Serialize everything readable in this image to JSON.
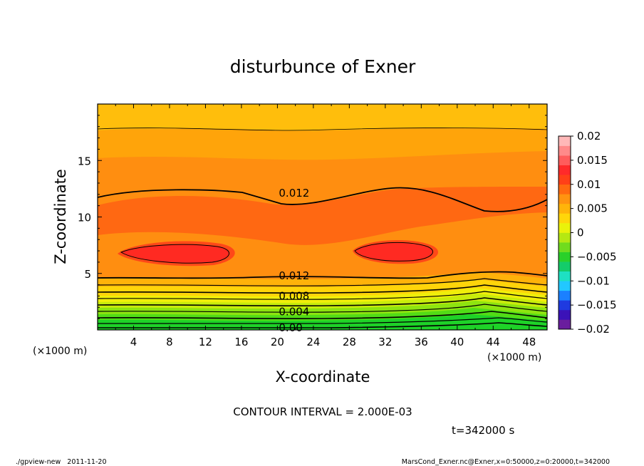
{
  "chart_data": {
    "type": "contour",
    "title": "disturbunce of Exner",
    "xlabel": "X-coordinate",
    "ylabel": "Z-coordinate",
    "x_unit": "(×1000 m)",
    "y_unit": "(×1000 m)",
    "xlim": [
      0,
      50
    ],
    "ylim": [
      0,
      20
    ],
    "x_ticks": [
      "4",
      "8",
      "12",
      "16",
      "20",
      "24",
      "28",
      "32",
      "36",
      "40",
      "44",
      "48"
    ],
    "y_ticks": [
      "5",
      "10",
      "15"
    ],
    "contour_interval_text": "CONTOUR INTERVAL = 2.000E-03",
    "time_text": "t=342000 s",
    "contour_labels": [
      {
        "text": "0.012",
        "x": 20,
        "z": 12.1
      },
      {
        "text": "0.012",
        "x": 20,
        "z": 4.8
      },
      {
        "text": "0.008",
        "x": 20,
        "z": 3.0
      },
      {
        "text": "0.004",
        "x": 20,
        "z": 1.6
      },
      {
        "text": "0.00",
        "x": 20,
        "z": 0.2
      }
    ],
    "colorbar": {
      "labels": [
        "0.02",
        "0.015",
        "0.01",
        "0.005",
        "0",
        "−0.005",
        "−0.01",
        "−0.015",
        "−0.02"
      ],
      "range": [
        -0.02,
        0.02
      ],
      "colors": [
        "#6a1e9e",
        "#3b12b8",
        "#1f3ae0",
        "#1b80ff",
        "#22c8ff",
        "#1ee0c2",
        "#14cc6a",
        "#2ad02a",
        "#70dc1e",
        "#b5e812",
        "#eaf20a",
        "#ffd60a",
        "#ffb40a",
        "#ff9410",
        "#ff6a10",
        "#ff4018",
        "#ff2a2a",
        "#ff5c5c",
        "#ff8a8a",
        "#ffb8b8"
      ]
    }
  },
  "footer": {
    "left": "./gpview-new   2011-11-20",
    "right": "MarsCond_Exner.nc@Exner,x=0:50000,z=0:20000,t=342000"
  }
}
